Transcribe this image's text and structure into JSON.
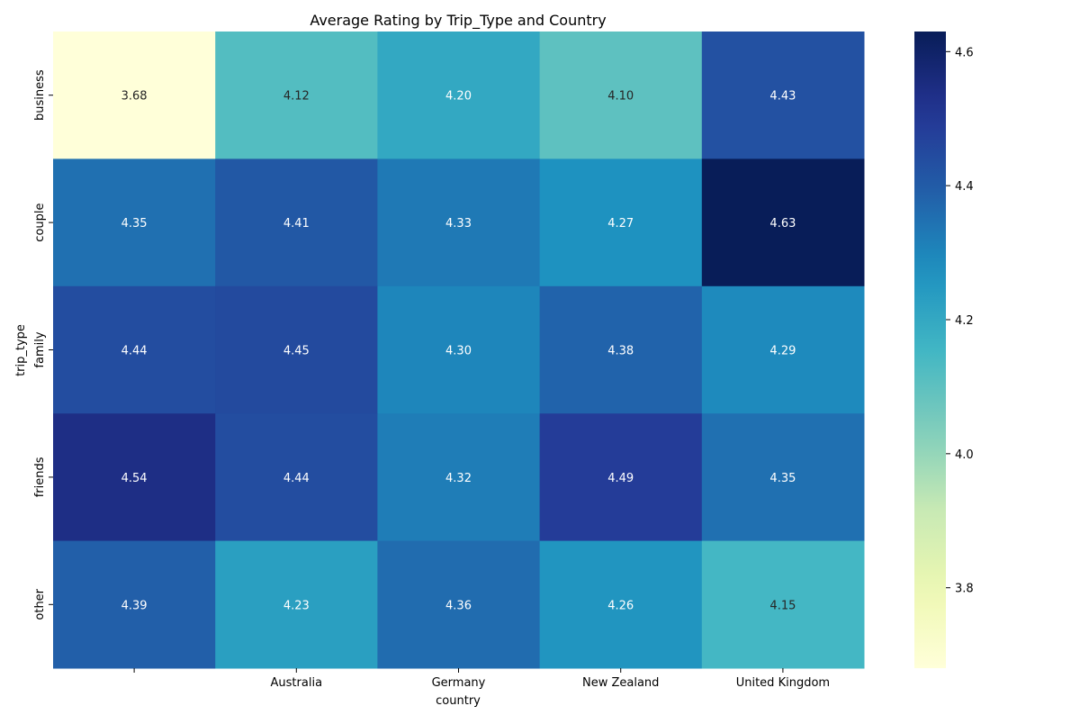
{
  "chart_data": {
    "type": "heatmap",
    "title": "Average Rating by Trip_Type and Country",
    "xlabel": "country",
    "ylabel": "trip_type",
    "x_categories": [
      "",
      "Australia",
      "Germany",
      "New Zealand",
      "United Kingdom"
    ],
    "y_categories": [
      "business",
      "couple",
      "family",
      "friends",
      "other"
    ],
    "values": [
      [
        3.68,
        4.12,
        4.2,
        4.1,
        4.43
      ],
      [
        4.35,
        4.41,
        4.33,
        4.27,
        4.63
      ],
      [
        4.44,
        4.45,
        4.3,
        4.38,
        4.29
      ],
      [
        4.54,
        4.44,
        4.32,
        4.49,
        4.35
      ],
      [
        4.39,
        4.23,
        4.36,
        4.26,
        4.15
      ]
    ],
    "value_format": "0.00",
    "colormap": "YlGnBu",
    "color_range": [
      3.68,
      4.63
    ],
    "colorbar_ticks": [
      "3.8",
      "4.0",
      "4.2",
      "4.4",
      "4.6"
    ]
  }
}
